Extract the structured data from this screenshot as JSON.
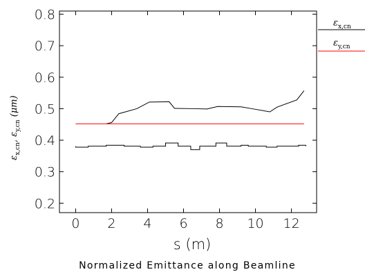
{
  "chart_data": {
    "type": "line",
    "title": "Normalized Emittance along Beamline",
    "xlabel": "s (m)",
    "ylabel": "εx,cn, εy,cn (μm)",
    "xlim": [
      -0.9,
      13.4
    ],
    "ylim": [
      0.17,
      0.81
    ],
    "xticks": [
      0,
      2,
      4,
      6,
      8,
      10,
      12
    ],
    "yticks": [
      0.2,
      0.3,
      0.4,
      0.5,
      0.6,
      0.7,
      0.8
    ],
    "ytick_labels": [
      "0.2",
      "0.3",
      "0.4",
      "0.5",
      "0.6",
      "0.7",
      "0.8"
    ],
    "grid": false,
    "legend_position": "right-outside",
    "legend": [
      {
        "symbol": "ε",
        "subscript": "x,cn",
        "color": "#000000"
      },
      {
        "symbol": "ε",
        "subscript": "y,cn",
        "color": "#ff0000"
      }
    ],
    "series": [
      {
        "color": "#000000",
        "shape": "polyline",
        "x": [
          1.7,
          2.0,
          2.4,
          3.4,
          4.1,
          5.2,
          5.5,
          6.6,
          7.3,
          7.9,
          9.2,
          9.8,
          10.8,
          11.2,
          12.3,
          12.7
        ],
        "y": [
          0.452,
          0.456,
          0.484,
          0.5,
          0.521,
          0.522,
          0.501,
          0.5,
          0.499,
          0.507,
          0.506,
          0.5,
          0.49,
          0.505,
          0.528,
          0.557
        ]
      },
      {
        "color": "#ff0000",
        "shape": "polyline",
        "x": [
          0.0,
          12.7
        ],
        "y": [
          0.452,
          0.452
        ]
      },
      {
        "color": "#000000",
        "shape": "steps",
        "baseline": 0.381,
        "segments": [
          {
            "x0": 0.0,
            "x1": 0.7,
            "y": 0.378
          },
          {
            "x0": 1.7,
            "x1": 2.7,
            "y": 0.384
          },
          {
            "x0": 3.6,
            "x1": 4.3,
            "y": 0.378
          },
          {
            "x0": 5.0,
            "x1": 5.7,
            "y": 0.391
          },
          {
            "x0": 6.4,
            "x1": 6.9,
            "y": 0.37
          },
          {
            "x0": 7.8,
            "x1": 8.4,
            "y": 0.391
          },
          {
            "x0": 9.2,
            "x1": 9.6,
            "y": 0.384
          },
          {
            "x0": 10.6,
            "x1": 11.2,
            "y": 0.378
          },
          {
            "x0": 12.4,
            "x1": 12.8,
            "y": 0.384
          }
        ]
      }
    ]
  }
}
